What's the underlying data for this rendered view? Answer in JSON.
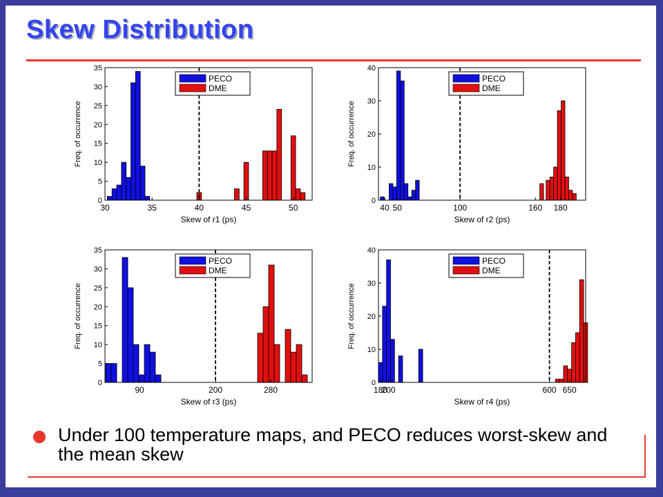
{
  "slide": {
    "title": "Skew Distribution",
    "bullet": "Under 100 temperature maps, and PECO reduces worst-skew and the mean skew"
  },
  "colors": {
    "peco": "#1010e0",
    "dme": "#e01010",
    "frame": "#3a3d9a",
    "accent": "#e8362b",
    "title": "#3344ee"
  },
  "chart_data": [
    {
      "type": "bar",
      "xlabel": "Skew of r1 (ps)",
      "ylabel": "Freq. of occurrence",
      "xlim": [
        30,
        52
      ],
      "ylim": [
        0,
        35
      ],
      "xticks": [
        "30",
        "35",
        "40",
        "45",
        "50"
      ],
      "yticks": [
        "0",
        "5",
        "10",
        "15",
        "20",
        "25",
        "30",
        "35"
      ],
      "divider_x": 40,
      "bin_width": 0.5,
      "legend": [
        "PECO",
        "DME"
      ],
      "series": [
        {
          "name": "PECO",
          "x": [
            30.5,
            31,
            31.5,
            32,
            32.5,
            33,
            33.5,
            34,
            34.5
          ],
          "values": [
            1,
            3,
            4,
            10,
            6,
            31,
            34,
            9,
            1
          ]
        },
        {
          "name": "DME",
          "x": [
            40,
            44,
            45,
            47,
            47.5,
            48,
            48.5,
            50,
            50.5,
            51
          ],
          "values": [
            2,
            3,
            10,
            13,
            13,
            13,
            24,
            17,
            3,
            2
          ]
        }
      ]
    },
    {
      "type": "bar",
      "xlabel": "Skew of r2 (ps)",
      "ylabel": "Freq. of occurrence",
      "xlim": [
        35,
        200
      ],
      "ylim": [
        0,
        40
      ],
      "xticks": [
        "40",
        "50",
        "100",
        "160",
        "180"
      ],
      "yticks": [
        "0",
        "10",
        "20",
        "30",
        "40"
      ],
      "divider_x": 100,
      "bin_width": 3,
      "legend": [
        "PECO",
        "DME"
      ],
      "series": [
        {
          "name": "PECO",
          "x": [
            38,
            45,
            48,
            51,
            54,
            57,
            60,
            63,
            66
          ],
          "values": [
            1,
            5,
            4,
            39,
            36,
            5,
            1,
            3,
            6
          ]
        },
        {
          "name": "DME",
          "x": [
            165,
            170,
            173,
            176,
            179,
            182,
            185,
            188,
            191
          ],
          "values": [
            5,
            6,
            7,
            10,
            27,
            30,
            7,
            3,
            2
          ]
        }
      ]
    },
    {
      "type": "bar",
      "xlabel": "Skew of r3 (ps)",
      "ylabel": "Freq. of occurrence",
      "xlim": [
        40,
        340
      ],
      "ylim": [
        0,
        35
      ],
      "xticks": [
        "90",
        "200",
        "280"
      ],
      "yticks": [
        "0",
        "5",
        "10",
        "15",
        "20",
        "25",
        "30",
        "35"
      ],
      "divider_x": 200,
      "bin_width": 8,
      "legend": [
        "PECO",
        "DME"
      ],
      "series": [
        {
          "name": "PECO",
          "x": [
            45,
            53,
            69,
            77,
            85,
            93,
            101,
            109,
            117
          ],
          "values": [
            5,
            5,
            33,
            25,
            10,
            2,
            10,
            8,
            2
          ]
        },
        {
          "name": "DME",
          "x": [
            265,
            273,
            281,
            289,
            305,
            313,
            321,
            329
          ],
          "values": [
            13,
            20,
            31,
            10,
            14,
            8,
            10,
            2
          ]
        }
      ]
    },
    {
      "type": "bar",
      "xlabel": "Skew of r4 (ps)",
      "ylabel": "Freq. of occurrence",
      "xlim": [
        175,
        690
      ],
      "ylim": [
        0,
        40
      ],
      "xticks": [
        "180",
        "200",
        "600",
        "650"
      ],
      "yticks": [
        "0",
        "10",
        "20",
        "30",
        "40"
      ],
      "divider_x": 600,
      "bin_width": 10,
      "legend": [
        "PECO",
        "DME"
      ],
      "series": [
        {
          "name": "PECO",
          "x": [
            180,
            190,
            200,
            210,
            230,
            280
          ],
          "values": [
            6,
            23,
            37,
            13,
            8,
            10
          ]
        },
        {
          "name": "DME",
          "x": [
            620,
            630,
            640,
            650,
            660,
            670,
            680,
            690
          ],
          "values": [
            1,
            1,
            5,
            4,
            12,
            15,
            31,
            18
          ]
        }
      ]
    }
  ]
}
